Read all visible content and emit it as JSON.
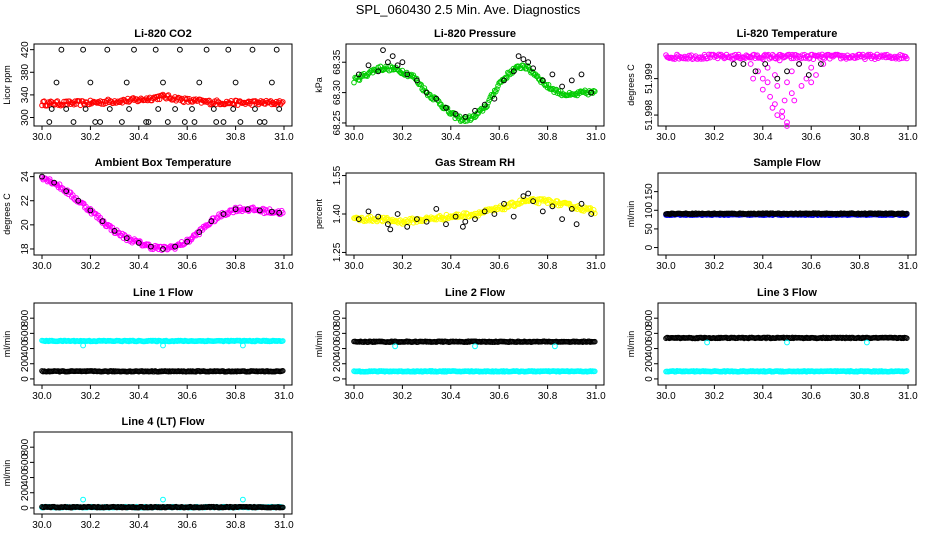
{
  "figure_title": "SPL_060430  2.5 Min. Ave. Diagnostics",
  "chart_data": [
    {
      "id": "co2",
      "type": "scatter",
      "title": "Li-820 CO2",
      "ylabel": "Licor ppm",
      "xlim": [
        30.0,
        31.0
      ],
      "ylim": [
        285,
        430
      ],
      "x_ticks": [
        "30.0",
        "30.2",
        "30.4",
        "30.6",
        "30.8",
        "31.0"
      ],
      "y_ticks": [
        300,
        340,
        380,
        420
      ],
      "series": [
        {
          "name": "2.5 min average",
          "color": "#ff0000",
          "kind": "band",
          "x": [
            30.0,
            30.1,
            30.2,
            30.3,
            30.4,
            30.45,
            30.5,
            30.55,
            30.6,
            30.7,
            30.8,
            30.9,
            31.0
          ],
          "y": [
            325,
            325,
            326,
            329,
            331,
            334,
            337,
            334,
            330,
            327,
            326,
            326,
            326
          ]
        },
        {
          "name": "outliers",
          "color": "#000000",
          "kind": "points",
          "x": [
            30.03,
            30.08,
            30.13,
            30.17,
            30.22,
            30.27,
            30.33,
            30.38,
            30.43,
            30.47,
            30.52,
            30.57,
            30.63,
            30.68,
            30.72,
            30.77,
            30.82,
            30.87,
            30.92,
            30.97,
            30.06,
            30.2,
            30.35,
            30.5,
            30.65,
            30.8,
            30.95,
            30.04,
            30.1,
            30.18,
            30.28,
            30.36,
            30.48,
            30.55,
            30.62,
            30.71,
            30.79,
            30.88,
            30.98,
            30.24,
            30.44,
            30.59,
            30.75,
            30.9
          ],
          "y": [
            292,
            420,
            292,
            420,
            292,
            420,
            292,
            420,
            292,
            420,
            292,
            420,
            292,
            420,
            292,
            420,
            292,
            420,
            292,
            420,
            362,
            362,
            362,
            362,
            362,
            362,
            362,
            315,
            315,
            315,
            315,
            315,
            315,
            315,
            315,
            315,
            315,
            315,
            315,
            292,
            292,
            292,
            292,
            292
          ]
        }
      ]
    },
    {
      "id": "pressure",
      "type": "scatter",
      "title": "Li-820 Pressure",
      "ylabel": "kPa",
      "xlim": [
        30.0,
        31.0
      ],
      "ylim": [
        68.245,
        68.38
      ],
      "x_ticks": [
        "30.0",
        "30.2",
        "30.4",
        "30.6",
        "30.8",
        "31.0"
      ],
      "y_ticks": [
        "68.25",
        "68.30",
        "68.35"
      ],
      "series": [
        {
          "name": "raw",
          "color": "#00cc00",
          "kind": "band",
          "x": [
            30.0,
            30.05,
            30.1,
            30.15,
            30.2,
            30.25,
            30.3,
            30.35,
            30.4,
            30.45,
            30.5,
            30.55,
            30.6,
            30.65,
            30.7,
            30.75,
            30.8,
            30.85,
            30.9,
            30.95,
            31.0
          ],
          "y": [
            68.32,
            68.33,
            68.34,
            68.34,
            68.335,
            68.325,
            68.3,
            68.285,
            68.265,
            68.255,
            68.26,
            68.28,
            68.315,
            68.335,
            68.345,
            68.33,
            68.31,
            68.3,
            68.295,
            68.3,
            68.3
          ]
        },
        {
          "name": "averages",
          "color": "#000000",
          "kind": "points",
          "x": [
            30.02,
            30.06,
            30.1,
            30.14,
            30.18,
            30.22,
            30.26,
            30.3,
            30.34,
            30.38,
            30.42,
            30.46,
            30.5,
            30.54,
            30.58,
            30.62,
            30.66,
            30.7,
            30.74,
            30.78,
            30.82,
            30.86,
            30.9,
            30.94,
            30.98,
            30.12,
            30.16,
            30.2,
            30.68,
            30.72
          ],
          "y": [
            68.33,
            68.345,
            68.335,
            68.35,
            68.345,
            68.33,
            68.32,
            68.3,
            68.29,
            68.275,
            68.265,
            68.26,
            68.27,
            68.28,
            68.29,
            68.32,
            68.335,
            68.355,
            68.34,
            68.32,
            68.33,
            68.31,
            68.32,
            68.33,
            68.3,
            68.37,
            68.36,
            68.35,
            68.36,
            68.35
          ]
        }
      ]
    },
    {
      "id": "temperature",
      "type": "scatter",
      "title": "Li-820 Temperature",
      "ylabel": "degrees C",
      "xlim": [
        30.0,
        31.0
      ],
      "ylim": [
        51.9977,
        51.99995
      ],
      "x_ticks": [
        "30.0",
        "30.2",
        "30.4",
        "30.6",
        "30.8",
        "31.0"
      ],
      "y_ticks": [
        "51.998",
        "51.999"
      ],
      "series": [
        {
          "name": "raw",
          "color": "#ff00ff",
          "kind": "points",
          "x": [
            30.3,
            30.35,
            30.38,
            30.4,
            30.42,
            30.45,
            30.47,
            30.5,
            30.52,
            30.55,
            30.58,
            30.6,
            30.62,
            30.65,
            30.4,
            30.43,
            30.46,
            30.49,
            30.52,
            30.44,
            30.48,
            30.5,
            30.46,
            30.48,
            30.5,
            30.42,
            30.56,
            30.36,
            30.6,
            30.45,
            30.53
          ],
          "y": [
            51.9996,
            51.9994,
            51.9992,
            51.999,
            51.9993,
            51.9991,
            51.9995,
            51.9989,
            51.9992,
            51.9994,
            51.999,
            51.9993,
            51.9991,
            51.9994,
            51.9987,
            51.9985,
            51.9988,
            51.9984,
            51.9986,
            51.9982,
            51.9981,
            51.9978,
            51.998,
            51.99795,
            51.9977,
            51.9989,
            51.9988,
            51.999,
            51.9989,
            51.9983,
            51.9984
          ]
        },
        {
          "name": "averages",
          "color": "#000000",
          "kind": "points",
          "x": [
            30.28,
            30.32,
            30.37,
            30.41,
            30.46,
            30.5,
            30.55,
            30.59,
            30.64
          ],
          "y": [
            51.9994,
            51.9994,
            51.9992,
            51.9994,
            51.999,
            51.9992,
            51.9994,
            51.9991,
            51.9994
          ]
        },
        {
          "name": "line",
          "color": "#ff00ff",
          "kind": "band",
          "x": [
            30.0,
            30.5,
            31.0
          ],
          "y": [
            51.9996,
            51.9996,
            51.9996
          ]
        }
      ]
    },
    {
      "id": "ambient",
      "type": "scatter",
      "title": "Ambient Box Temperature",
      "ylabel": "degrees C",
      "xlim": [
        30.0,
        31.0
      ],
      "ylim": [
        17.5,
        24.3
      ],
      "x_ticks": [
        "30.0",
        "30.2",
        "30.4",
        "30.6",
        "30.8",
        "31.0"
      ],
      "y_ticks": [
        18,
        20,
        22,
        24
      ],
      "series": [
        {
          "name": "raw",
          "color": "#ff00ff",
          "kind": "band",
          "x": [
            30.0,
            30.05,
            30.1,
            30.15,
            30.2,
            30.25,
            30.3,
            30.35,
            30.4,
            30.45,
            30.5,
            30.55,
            30.6,
            30.65,
            30.7,
            30.75,
            30.8,
            30.85,
            30.9,
            30.95,
            31.0
          ],
          "y": [
            24.0,
            23.5,
            22.8,
            22.0,
            21.2,
            20.3,
            19.5,
            18.9,
            18.5,
            18.2,
            18.0,
            18.2,
            18.6,
            19.4,
            20.3,
            20.9,
            21.3,
            21.3,
            21.2,
            21.1,
            21.0
          ]
        },
        {
          "name": "averages",
          "color": "#000000",
          "kind": "points",
          "x": [
            30.0,
            30.05,
            30.1,
            30.15,
            30.2,
            30.25,
            30.3,
            30.35,
            30.4,
            30.45,
            30.5,
            30.55,
            30.6,
            30.65,
            30.7,
            30.75,
            30.8,
            30.85,
            30.9,
            30.95,
            30.98
          ],
          "y": [
            24.0,
            23.5,
            22.8,
            22.0,
            21.2,
            20.3,
            19.5,
            18.9,
            18.5,
            18.2,
            18.0,
            18.2,
            18.6,
            19.4,
            20.3,
            20.9,
            21.3,
            21.3,
            21.2,
            21.1,
            21.0
          ]
        }
      ]
    },
    {
      "id": "rh",
      "type": "scatter",
      "title": "Gas Stream RH",
      "ylabel": "percent",
      "xlim": [
        30.0,
        31.0
      ],
      "ylim": [
        1.24,
        1.56
      ],
      "x_ticks": [
        "30.0",
        "30.2",
        "30.4",
        "30.6",
        "30.8",
        "31.0"
      ],
      "y_ticks": [
        "1.25",
        "1.40",
        "1.55"
      ],
      "series": [
        {
          "name": "raw",
          "color": "#ffff00",
          "kind": "band",
          "x": [
            30.0,
            30.1,
            30.2,
            30.3,
            30.4,
            30.5,
            30.6,
            30.7,
            30.8,
            30.9,
            31.0
          ],
          "y": [
            1.38,
            1.38,
            1.37,
            1.38,
            1.39,
            1.4,
            1.42,
            1.45,
            1.45,
            1.43,
            1.41
          ]
        },
        {
          "name": "averages",
          "color": "#000000",
          "kind": "points",
          "x": [
            30.02,
            30.06,
            30.1,
            30.14,
            30.18,
            30.22,
            30.26,
            30.3,
            30.34,
            30.38,
            30.42,
            30.46,
            30.5,
            30.54,
            30.58,
            30.62,
            30.66,
            30.7,
            30.74,
            30.78,
            30.82,
            30.86,
            30.9,
            30.94,
            30.98,
            30.15,
            30.45,
            30.72,
            30.92
          ],
          "y": [
            1.38,
            1.41,
            1.39,
            1.36,
            1.4,
            1.35,
            1.38,
            1.37,
            1.42,
            1.36,
            1.39,
            1.37,
            1.38,
            1.41,
            1.4,
            1.44,
            1.39,
            1.47,
            1.45,
            1.41,
            1.43,
            1.38,
            1.42,
            1.44,
            1.4,
            1.34,
            1.35,
            1.48,
            1.36
          ]
        }
      ]
    },
    {
      "id": "sample_flow",
      "type": "scatter",
      "title": "Sample Flow",
      "ylabel": "ml/min",
      "xlim": [
        30.0,
        31.0
      ],
      "ylim": [
        -20,
        200
      ],
      "x_ticks": [
        "30.0",
        "30.2",
        "30.4",
        "30.6",
        "30.8",
        "31.0"
      ],
      "y_ticks": [
        0,
        50,
        100,
        150
      ],
      "series": [
        {
          "name": "raw",
          "color": "#0000ff",
          "kind": "band",
          "x": [
            30.0,
            31.0
          ],
          "y": [
            88,
            88
          ]
        },
        {
          "name": "averages",
          "color": "#000000",
          "kind": "band",
          "x": [
            30.0,
            31.0
          ],
          "y": [
            91,
            91
          ]
        }
      ]
    },
    {
      "id": "line1",
      "type": "scatter",
      "title": "Line 1 Flow",
      "ylabel": "ml/min",
      "xlim": [
        30.0,
        31.0
      ],
      "ylim": [
        -80,
        1000
      ],
      "x_ticks": [
        "30.0",
        "30.2",
        "30.4",
        "30.6",
        "30.8",
        "31.0"
      ],
      "y_ticks": [
        0,
        200,
        400,
        600,
        800
      ],
      "series": [
        {
          "name": "raw",
          "color": "#00ffff",
          "kind": "band",
          "x": [
            30.0,
            31.0
          ],
          "y": [
            500,
            500
          ]
        },
        {
          "name": "averages",
          "color": "#000000",
          "kind": "band",
          "x": [
            30.0,
            31.0
          ],
          "y": [
            100,
            100
          ]
        },
        {
          "name": "dips",
          "color": "#00ffff",
          "kind": "points",
          "x": [
            30.17,
            30.5,
            30.83
          ],
          "y": [
            440,
            440,
            440
          ]
        }
      ]
    },
    {
      "id": "line2",
      "type": "scatter",
      "title": "Line 2 Flow",
      "ylabel": "ml/min",
      "xlim": [
        30.0,
        31.0
      ],
      "ylim": [
        -80,
        1000
      ],
      "x_ticks": [
        "30.0",
        "30.2",
        "30.4",
        "30.6",
        "30.8",
        "31.0"
      ],
      "y_ticks": [
        0,
        200,
        400,
        600,
        800
      ],
      "series": [
        {
          "name": "raw",
          "color": "#00ffff",
          "kind": "band",
          "x": [
            30.0,
            31.0
          ],
          "y": [
            100,
            100
          ]
        },
        {
          "name": "averages",
          "color": "#000000",
          "kind": "band",
          "x": [
            30.0,
            31.0
          ],
          "y": [
            490,
            490
          ]
        },
        {
          "name": "dips",
          "color": "#00ffff",
          "kind": "points",
          "x": [
            30.17,
            30.5,
            30.83
          ],
          "y": [
            430,
            430,
            430
          ]
        }
      ]
    },
    {
      "id": "line3",
      "type": "scatter",
      "title": "Line 3 Flow",
      "ylabel": "ml/min",
      "xlim": [
        30.0,
        31.0
      ],
      "ylim": [
        -80,
        1000
      ],
      "x_ticks": [
        "30.0",
        "30.2",
        "30.4",
        "30.6",
        "30.8",
        "31.0"
      ],
      "y_ticks": [
        0,
        200,
        400,
        600,
        800
      ],
      "series": [
        {
          "name": "raw",
          "color": "#00ffff",
          "kind": "band",
          "x": [
            30.0,
            31.0
          ],
          "y": [
            100,
            100
          ]
        },
        {
          "name": "averages",
          "color": "#000000",
          "kind": "band",
          "x": [
            30.0,
            31.0
          ],
          "y": [
            540,
            540
          ]
        },
        {
          "name": "dips",
          "color": "#00ffff",
          "kind": "points",
          "x": [
            30.17,
            30.5,
            30.83
          ],
          "y": [
            480,
            480,
            480
          ]
        }
      ]
    },
    {
      "id": "line4",
      "type": "scatter",
      "title": "Line 4 (LT) Flow",
      "ylabel": "ml/min",
      "xlim": [
        30.0,
        31.0
      ],
      "ylim": [
        -80,
        1000
      ],
      "x_ticks": [
        "30.0",
        "30.2",
        "30.4",
        "30.6",
        "30.8",
        "31.0"
      ],
      "y_ticks": [
        0,
        200,
        400,
        600,
        800
      ],
      "series": [
        {
          "name": "raw",
          "color": "#00ffff",
          "kind": "band",
          "x": [
            30.0,
            31.0
          ],
          "y": [
            10,
            10
          ]
        },
        {
          "name": "averages",
          "color": "#000000",
          "kind": "band",
          "x": [
            30.0,
            31.0
          ],
          "y": [
            10,
            10
          ]
        },
        {
          "name": "spikes",
          "color": "#00ffff",
          "kind": "points",
          "x": [
            30.17,
            30.5,
            30.83
          ],
          "y": [
            110,
            110,
            110
          ]
        }
      ]
    }
  ]
}
